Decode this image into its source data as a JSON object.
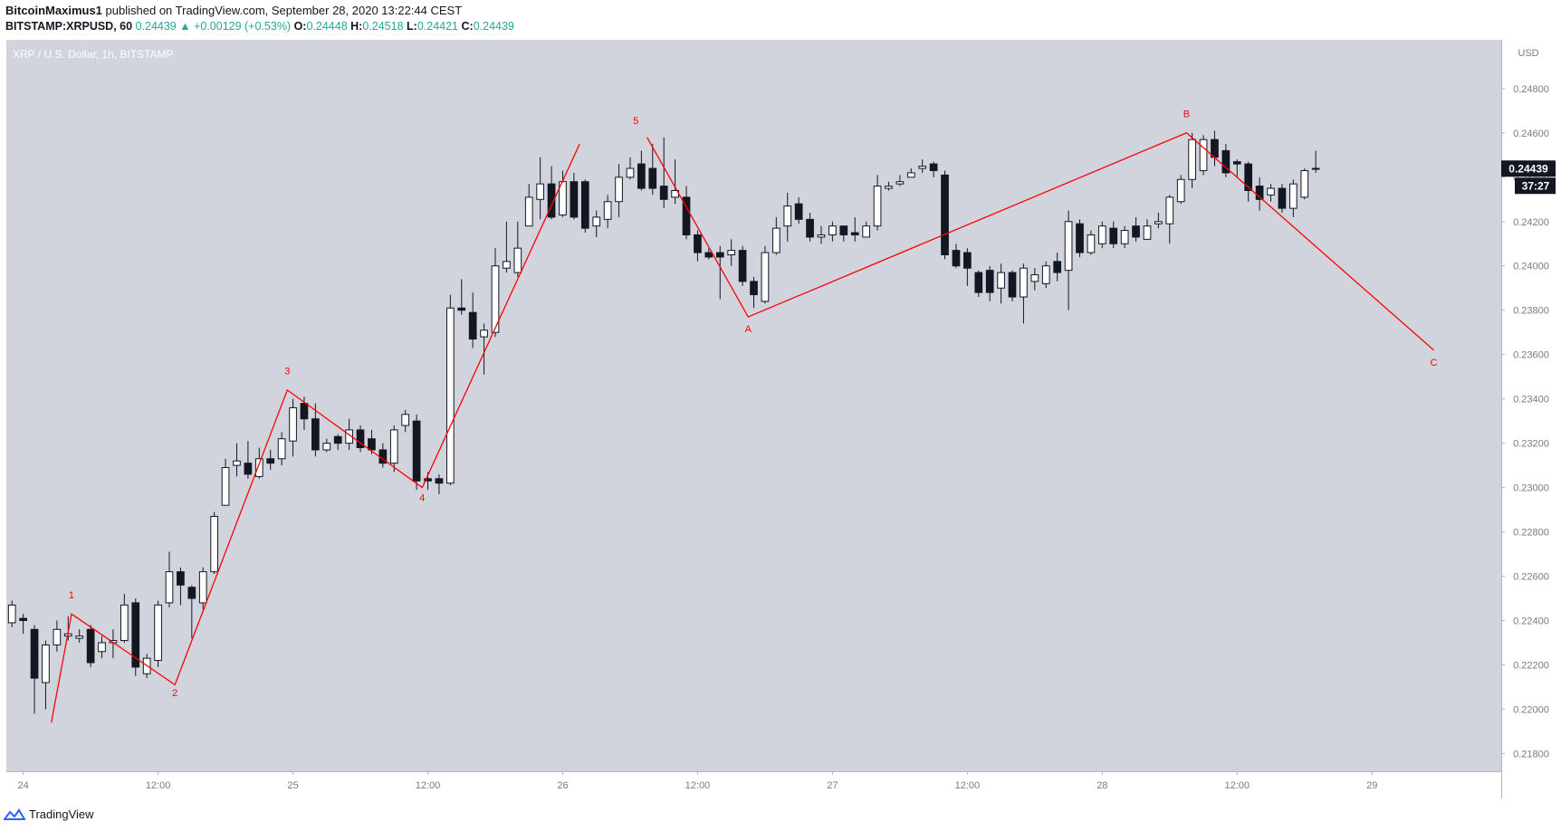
{
  "header": {
    "author": "BitcoinMaximus1",
    "published_text": "published on TradingView.com, September 28, 2020 13:22:44 CEST",
    "symbol": "BITSTAMP:XRPUSD, 60",
    "change": "0.24439 ▲ +0.00129 (+0.53%)",
    "o_label": "O:",
    "o_value": "0.24448",
    "h_label": "H:",
    "h_value": "0.24518",
    "l_label": "L:",
    "l_value": "0.24421",
    "c_label": "C:",
    "c_value": "0.24439"
  },
  "footer": {
    "brand": "TradingView"
  },
  "colors": {
    "background": "#d1d4dc",
    "wave": "#ff0000",
    "bear": "#131722",
    "bull": "#ffffff",
    "price_tag": "#131722"
  },
  "chart_data": {
    "type": "candlestick",
    "title": "XRP / U.S. Dollar, 1h, BITSTAMP",
    "currency": "USD",
    "ylim": [
      0.2172,
      0.2502
    ],
    "y_ticks": [
      "0.24800",
      "0.24600",
      "0.24400",
      "0.24200",
      "0.24000",
      "0.23800",
      "0.23600",
      "0.23400",
      "0.23200",
      "0.23000",
      "0.22800",
      "0.22600",
      "0.22400",
      "0.22200",
      "0.22000",
      "0.21800"
    ],
    "x_ticks": [
      {
        "i": 1,
        "label": "24"
      },
      {
        "i": 13,
        "label": "12:00"
      },
      {
        "i": 25,
        "label": "25"
      },
      {
        "i": 37,
        "label": "12:00"
      },
      {
        "i": 49,
        "label": "26"
      },
      {
        "i": 61,
        "label": "12:00"
      },
      {
        "i": 73,
        "label": "27"
      },
      {
        "i": 85,
        "label": "12:00"
      },
      {
        "i": 97,
        "label": "28"
      },
      {
        "i": 109,
        "label": "12:00"
      },
      {
        "i": 121,
        "label": "29"
      }
    ],
    "x_range": [
      -0.5,
      132.5
    ],
    "last_price": "0.24439",
    "countdown": "37:27",
    "candles": [
      [
        0.2239,
        0.2247,
        0.2237,
        0.2249
      ],
      [
        0.2241,
        0.224,
        0.2234,
        0.2243
      ],
      [
        0.2236,
        0.2214,
        0.2198,
        0.2238
      ],
      [
        0.2212,
        0.2229,
        0.22,
        0.2231
      ],
      [
        0.2229,
        0.2236,
        0.2226,
        0.224
      ],
      [
        0.2233,
        0.2234,
        0.2231,
        0.2242
      ],
      [
        0.2232,
        0.2233,
        0.223,
        0.2236
      ],
      [
        0.2236,
        0.2221,
        0.2219,
        0.2238
      ],
      [
        0.2226,
        0.223,
        0.2223,
        0.2233
      ],
      [
        0.223,
        0.2231,
        0.2223,
        0.2236
      ],
      [
        0.2231,
        0.2247,
        0.223,
        0.2252
      ],
      [
        0.2248,
        0.2219,
        0.2215,
        0.225
      ],
      [
        0.2216,
        0.2223,
        0.2214,
        0.2225
      ],
      [
        0.2222,
        0.2247,
        0.2219,
        0.2249
      ],
      [
        0.2248,
        0.2262,
        0.2246,
        0.2271
      ],
      [
        0.2262,
        0.2256,
        0.2247,
        0.2264
      ],
      [
        0.2255,
        0.225,
        0.2232,
        0.2256
      ],
      [
        0.2248,
        0.2262,
        0.2245,
        0.2264
      ],
      [
        0.2262,
        0.2287,
        0.2261,
        0.2289
      ],
      [
        0.2292,
        0.2309,
        0.2292,
        0.2313
      ],
      [
        0.231,
        0.2312,
        0.2305,
        0.232
      ],
      [
        0.2311,
        0.2306,
        0.2304,
        0.2321
      ],
      [
        0.2305,
        0.2313,
        0.2304,
        0.2318
      ],
      [
        0.2313,
        0.2311,
        0.2308,
        0.2317
      ],
      [
        0.2313,
        0.2322,
        0.231,
        0.2325
      ],
      [
        0.2321,
        0.2336,
        0.2314,
        0.234
      ],
      [
        0.2338,
        0.2331,
        0.2326,
        0.2341
      ],
      [
        0.2331,
        0.2317,
        0.2314,
        0.2338
      ],
      [
        0.2317,
        0.232,
        0.2316,
        0.2322
      ],
      [
        0.2323,
        0.232,
        0.2317,
        0.2324
      ],
      [
        0.232,
        0.2326,
        0.2317,
        0.2331
      ],
      [
        0.2326,
        0.2318,
        0.2316,
        0.2328
      ],
      [
        0.2322,
        0.2317,
        0.2315,
        0.2326
      ],
      [
        0.2317,
        0.2311,
        0.2309,
        0.232
      ],
      [
        0.2311,
        0.2326,
        0.2307,
        0.2328
      ],
      [
        0.2328,
        0.2333,
        0.2325,
        0.2335
      ],
      [
        0.233,
        0.2303,
        0.2299,
        0.2333
      ],
      [
        0.2304,
        0.2303,
        0.2299,
        0.2307
      ],
      [
        0.2304,
        0.2302,
        0.2297,
        0.2306
      ],
      [
        0.2302,
        0.2381,
        0.2301,
        0.2387
      ],
      [
        0.2381,
        0.238,
        0.2378,
        0.2394
      ],
      [
        0.2379,
        0.2367,
        0.2363,
        0.2388
      ],
      [
        0.2368,
        0.2371,
        0.2351,
        0.2374
      ],
      [
        0.237,
        0.24,
        0.2368,
        0.2408
      ],
      [
        0.2399,
        0.2402,
        0.2397,
        0.242
      ],
      [
        0.2397,
        0.2408,
        0.2395,
        0.242
      ],
      [
        0.2418,
        0.2431,
        0.2418,
        0.2437
      ],
      [
        0.243,
        0.2437,
        0.2421,
        0.2449
      ],
      [
        0.2437,
        0.2422,
        0.2421,
        0.2445
      ],
      [
        0.2423,
        0.2438,
        0.2422,
        0.2443
      ],
      [
        0.2438,
        0.2422,
        0.2421,
        0.2442
      ],
      [
        0.2438,
        0.2417,
        0.2415,
        0.2439
      ],
      [
        0.2418,
        0.2422,
        0.2413,
        0.2425
      ],
      [
        0.2421,
        0.2429,
        0.2417,
        0.2432
      ],
      [
        0.2429,
        0.244,
        0.2422,
        0.2446
      ],
      [
        0.244,
        0.2444,
        0.2439,
        0.2449
      ],
      [
        0.2446,
        0.2435,
        0.2434,
        0.2452
      ],
      [
        0.2444,
        0.2435,
        0.2432,
        0.2455
      ],
      [
        0.2436,
        0.243,
        0.2426,
        0.2458
      ],
      [
        0.2431,
        0.2434,
        0.2428,
        0.2448
      ],
      [
        0.2431,
        0.2414,
        0.2412,
        0.2436
      ],
      [
        0.2414,
        0.2406,
        0.2402,
        0.2416
      ],
      [
        0.2406,
        0.2404,
        0.2403,
        0.2408
      ],
      [
        0.2406,
        0.2404,
        0.2385,
        0.2409
      ],
      [
        0.2405,
        0.2407,
        0.24,
        0.2412
      ],
      [
        0.2407,
        0.2393,
        0.2391,
        0.2409
      ],
      [
        0.2393,
        0.2387,
        0.2381,
        0.2395
      ],
      [
        0.2384,
        0.2406,
        0.2383,
        0.2409
      ],
      [
        0.2406,
        0.2417,
        0.2405,
        0.2422
      ],
      [
        0.2418,
        0.2427,
        0.2411,
        0.2433
      ],
      [
        0.2428,
        0.2421,
        0.2419,
        0.2431
      ],
      [
        0.2421,
        0.2413,
        0.2411,
        0.2424
      ],
      [
        0.2413,
        0.2414,
        0.241,
        0.2418
      ],
      [
        0.2414,
        0.2418,
        0.2411,
        0.242
      ],
      [
        0.2418,
        0.2414,
        0.2411,
        0.2418
      ],
      [
        0.2415,
        0.2414,
        0.2411,
        0.2422
      ],
      [
        0.2413,
        0.2418,
        0.2413,
        0.242
      ],
      [
        0.2418,
        0.2436,
        0.2416,
        0.2441
      ],
      [
        0.2435,
        0.2436,
        0.2434,
        0.2438
      ],
      [
        0.2437,
        0.2438,
        0.2436,
        0.2441
      ],
      [
        0.244,
        0.2442,
        0.244,
        0.2444
      ],
      [
        0.2444,
        0.2445,
        0.2442,
        0.2448
      ],
      [
        0.2446,
        0.2443,
        0.244,
        0.2447
      ],
      [
        0.2441,
        0.2405,
        0.2403,
        0.2443
      ],
      [
        0.2407,
        0.24,
        0.2399,
        0.241
      ],
      [
        0.2406,
        0.2399,
        0.2391,
        0.2408
      ],
      [
        0.2397,
        0.2388,
        0.2386,
        0.2398
      ],
      [
        0.2398,
        0.2388,
        0.2384,
        0.24
      ],
      [
        0.239,
        0.2397,
        0.2383,
        0.2401
      ],
      [
        0.2397,
        0.2386,
        0.2384,
        0.2398
      ],
      [
        0.2386,
        0.2399,
        0.2374,
        0.2401
      ],
      [
        0.2393,
        0.2396,
        0.2389,
        0.2399
      ],
      [
        0.2392,
        0.24,
        0.239,
        0.2402
      ],
      [
        0.2402,
        0.2397,
        0.2393,
        0.2406
      ],
      [
        0.2398,
        0.242,
        0.238,
        0.2425
      ],
      [
        0.2419,
        0.2406,
        0.2404,
        0.2421
      ],
      [
        0.2406,
        0.2414,
        0.2405,
        0.2416
      ],
      [
        0.241,
        0.2418,
        0.2408,
        0.242
      ],
      [
        0.2417,
        0.241,
        0.2408,
        0.242
      ],
      [
        0.241,
        0.2416,
        0.2408,
        0.2418
      ],
      [
        0.2418,
        0.2413,
        0.2411,
        0.2422
      ],
      [
        0.2412,
        0.2418,
        0.2412,
        0.2421
      ],
      [
        0.2419,
        0.242,
        0.2417,
        0.2424
      ],
      [
        0.2419,
        0.2431,
        0.241,
        0.2432
      ],
      [
        0.2429,
        0.2439,
        0.2428,
        0.2441
      ],
      [
        0.2439,
        0.2457,
        0.2435,
        0.246
      ],
      [
        0.2443,
        0.2457,
        0.2441,
        0.2459
      ],
      [
        0.2457,
        0.2449,
        0.2445,
        0.2461
      ],
      [
        0.2452,
        0.2442,
        0.244,
        0.2455
      ],
      [
        0.2447,
        0.2446,
        0.244,
        0.2448
      ],
      [
        0.2446,
        0.2434,
        0.2429,
        0.2447
      ],
      [
        0.2436,
        0.243,
        0.2425,
        0.244
      ],
      [
        0.2432,
        0.2435,
        0.2429,
        0.2437
      ],
      [
        0.2435,
        0.2426,
        0.2424,
        0.2437
      ],
      [
        0.2426,
        0.2437,
        0.2422,
        0.2439
      ],
      [
        0.2431,
        0.2443,
        0.243,
        0.2444
      ],
      [
        0.2444,
        0.2444,
        0.2442,
        0.2452
      ]
    ],
    "wave_lines": [
      [
        [
          3.5,
          0.2194
        ],
        [
          5.3,
          0.2243
        ],
        [
          14.5,
          0.2211
        ],
        [
          24.5,
          0.2344
        ],
        [
          36.5,
          0.23
        ],
        [
          50.5,
          0.2455
        ]
      ],
      [
        [
          56.5,
          0.2458
        ],
        [
          65.5,
          0.2377
        ],
        [
          104.5,
          0.246
        ],
        [
          126.5,
          0.2362
        ]
      ]
    ],
    "wave_labels": [
      {
        "text": "1",
        "i": 5.3,
        "y": 0.225
      },
      {
        "text": "2",
        "i": 14.5,
        "y": 0.2206
      },
      {
        "text": "3",
        "i": 24.5,
        "y": 0.2351
      },
      {
        "text": "4",
        "i": 36.5,
        "y": 0.2294
      },
      {
        "text": "5",
        "i": 55.5,
        "y": 0.2464
      },
      {
        "text": "A",
        "i": 65.5,
        "y": 0.237
      },
      {
        "text": "B",
        "i": 104.5,
        "y": 0.2467
      },
      {
        "text": "C",
        "i": 126.5,
        "y": 0.2355
      }
    ]
  }
}
